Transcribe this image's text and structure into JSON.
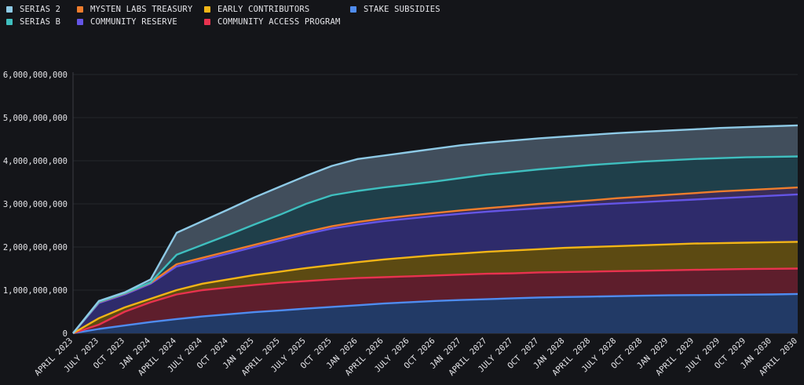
{
  "legend": [
    {
      "label": "SERIAS 2",
      "color": "#8ecae6"
    },
    {
      "label": "SERIAS B",
      "color": "#3fbfbf"
    },
    {
      "label": "MYSTEN LABS TREASURY",
      "color": "#ef7d2d"
    },
    {
      "label": "COMMUNITY RESERVE",
      "color": "#6455e6"
    },
    {
      "label": "EARLY CONTRIBUTORS",
      "color": "#f2b517"
    },
    {
      "label": "COMMUNITY ACCESS PROGRAM",
      "color": "#e8324f"
    },
    {
      "label": "STAKE SUBSIDIES",
      "color": "#4f8cf0"
    }
  ],
  "chart_data": {
    "type": "area",
    "stacked": true,
    "title": "",
    "xlabel": "",
    "ylabel": "",
    "ylim": [
      0,
      6000000000
    ],
    "yticks": [
      0,
      1000000000,
      2000000000,
      3000000000,
      4000000000,
      5000000000,
      6000000000
    ],
    "ytick_labels": [
      "0",
      "1,000,000,000",
      "2,000,000,000",
      "3,000,000,000",
      "4,000,000,000",
      "5,000,000,000",
      "6,000,000,000"
    ],
    "grid": "horizontal",
    "legend_position": "top-left",
    "xtick_labels": [
      "APRIL 2023",
      "JULY 2023",
      "OCT 2023",
      "JAN 2024",
      "APRIL 2024",
      "JULY 2024",
      "OCT 2024",
      "JAN 2025",
      "APRIL 2025",
      "JULY 2025",
      "OCT 2025",
      "JAN 2026",
      "APRIL 2026",
      "JULY 2026",
      "OCT 2026",
      "JAN 2027",
      "APRIL 2027",
      "JULY 2027",
      "OCT 2027",
      "JAN 2028",
      "APRIL 2028",
      "JULY 2028",
      "OCT 2028",
      "JAN 2029",
      "APRIL 2029",
      "JULY 2029",
      "OCT 2029",
      "JAN 2030",
      "APRIL 2030"
    ],
    "x": [
      "APRIL 2023",
      "JULY 2023",
      "OCT 2023",
      "JAN 2024",
      "APRIL 2024",
      "JULY 2024",
      "OCT 2024",
      "JAN 2025",
      "APRIL 2025",
      "JULY 2025",
      "OCT 2025",
      "JAN 2026",
      "APRIL 2026",
      "JULY 2026",
      "OCT 2026",
      "JAN 2027",
      "APRIL 2027",
      "JULY 2027",
      "OCT 2027",
      "JAN 2028",
      "APRIL 2028",
      "JULY 2028",
      "OCT 2028",
      "JAN 2029",
      "APRIL 2029",
      "JULY 2029",
      "OCT 2029",
      "JAN 2030",
      "APRIL 2030"
    ],
    "cumulative": [
      {
        "name": "STAKE SUBSIDIES",
        "color": "#4f8cf0",
        "fill": "#223a66",
        "values": [
          0,
          100000000,
          180000000,
          260000000,
          330000000,
          390000000,
          440000000,
          490000000,
          530000000,
          570000000,
          610000000,
          650000000,
          690000000,
          720000000,
          750000000,
          770000000,
          790000000,
          810000000,
          830000000,
          840000000,
          850000000,
          860000000,
          870000000,
          880000000,
          885000000,
          890000000,
          895000000,
          900000000,
          910000000
        ]
      },
      {
        "name": "COMMUNITY ACCESS PROGRAM",
        "color": "#e8324f",
        "fill": "#5e1e2c",
        "values": [
          0,
          200000000,
          500000000,
          720000000,
          900000000,
          1000000000,
          1060000000,
          1120000000,
          1170000000,
          1210000000,
          1250000000,
          1280000000,
          1300000000,
          1320000000,
          1340000000,
          1360000000,
          1380000000,
          1390000000,
          1410000000,
          1420000000,
          1430000000,
          1440000000,
          1450000000,
          1460000000,
          1470000000,
          1480000000,
          1490000000,
          1495000000,
          1500000000
        ]
      },
      {
        "name": "EARLY CONTRIBUTORS",
        "color": "#f2b517",
        "fill": "#5c4a12",
        "values": [
          0,
          350000000,
          600000000,
          800000000,
          1000000000,
          1150000000,
          1250000000,
          1350000000,
          1430000000,
          1510000000,
          1580000000,
          1650000000,
          1710000000,
          1760000000,
          1810000000,
          1850000000,
          1890000000,
          1920000000,
          1950000000,
          1980000000,
          2000000000,
          2020000000,
          2040000000,
          2060000000,
          2080000000,
          2090000000,
          2100000000,
          2110000000,
          2120000000
        ]
      },
      {
        "name": "COMMUNITY RESERVE",
        "color": "#6455e6",
        "fill": "#2e2b6b",
        "values": [
          0,
          700000000,
          900000000,
          1150000000,
          1550000000,
          1700000000,
          1850000000,
          2000000000,
          2150000000,
          2300000000,
          2430000000,
          2520000000,
          2600000000,
          2660000000,
          2720000000,
          2770000000,
          2820000000,
          2860000000,
          2900000000,
          2940000000,
          2980000000,
          3010000000,
          3040000000,
          3070000000,
          3100000000,
          3130000000,
          3160000000,
          3190000000,
          3220000000
        ]
      },
      {
        "name": "MYSTEN LABS TREASURY",
        "color": "#ef7d2d",
        "fill": "#3a2d57",
        "values": [
          0,
          720000000,
          920000000,
          1170000000,
          1600000000,
          1750000000,
          1900000000,
          2050000000,
          2200000000,
          2350000000,
          2480000000,
          2580000000,
          2660000000,
          2730000000,
          2790000000,
          2850000000,
          2900000000,
          2950000000,
          3000000000,
          3040000000,
          3080000000,
          3130000000,
          3170000000,
          3210000000,
          3250000000,
          3290000000,
          3320000000,
          3350000000,
          3380000000
        ]
      },
      {
        "name": "SERIAS B",
        "color": "#3fbfbf",
        "fill": "#1f3f4a",
        "values": [
          0,
          730000000,
          930000000,
          1180000000,
          1820000000,
          2050000000,
          2280000000,
          2520000000,
          2750000000,
          3000000000,
          3200000000,
          3300000000,
          3380000000,
          3450000000,
          3520000000,
          3600000000,
          3680000000,
          3740000000,
          3800000000,
          3850000000,
          3900000000,
          3940000000,
          3980000000,
          4010000000,
          4040000000,
          4060000000,
          4080000000,
          4090000000,
          4100000000
        ]
      },
      {
        "name": "SERIAS 2",
        "color": "#8ecae6",
        "fill": "#414e5c",
        "values": [
          0,
          750000000,
          950000000,
          1250000000,
          2330000000,
          2600000000,
          2870000000,
          3150000000,
          3400000000,
          3650000000,
          3880000000,
          4040000000,
          4120000000,
          4200000000,
          4280000000,
          4360000000,
          4420000000,
          4470000000,
          4520000000,
          4560000000,
          4600000000,
          4640000000,
          4670000000,
          4700000000,
          4730000000,
          4760000000,
          4780000000,
          4800000000,
          4820000000
        ]
      }
    ]
  }
}
